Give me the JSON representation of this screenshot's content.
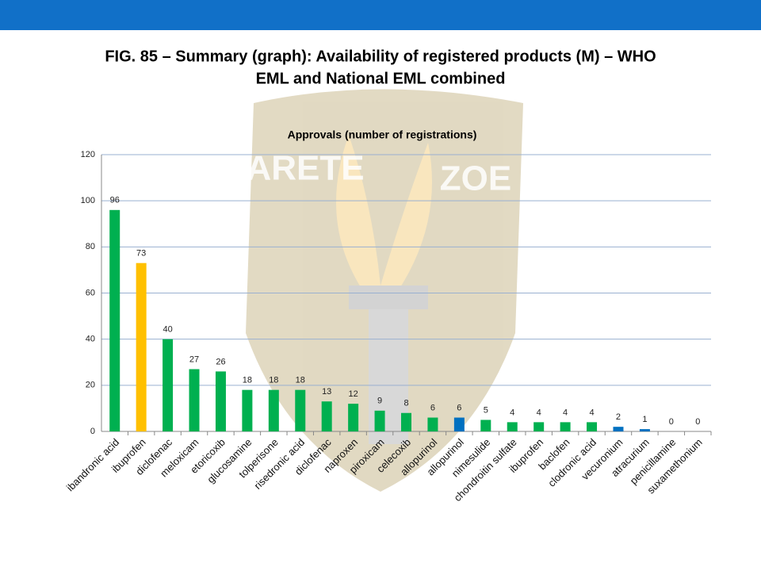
{
  "slide": {
    "title_line1": "FIG. 85 – Summary (graph): Availability of registered products (M) – WHO",
    "title_line2": "EML and National EML combined",
    "watermark": [
      "ARETE",
      "ZOE"
    ]
  },
  "chart_data": {
    "type": "bar",
    "title": "Approvals (number of registrations)",
    "categories": [
      "ibandronic acid",
      "ibuprofen",
      "diclofenac",
      "meloxicam",
      "etoricoxib",
      "glucosamine",
      "tolperisone",
      "risedronic acid",
      "diclofenac",
      "naproxen",
      "piroxicam",
      "celecoxib",
      "allopurinol",
      "allopurinol",
      "nimesulide",
      "chondroitin sulfate",
      "ibuprofen",
      "baclofen",
      "clodronic acid",
      "vecuronium",
      "atracurium",
      "penicillamine",
      "suxamethonium"
    ],
    "values": [
      96,
      73,
      40,
      27,
      26,
      18,
      18,
      18,
      13,
      12,
      9,
      8,
      6,
      6,
      5,
      4,
      4,
      4,
      4,
      2,
      1,
      0,
      0
    ],
    "colors": [
      "#00b050",
      "#ffc000",
      "#00b050",
      "#00b050",
      "#00b050",
      "#00b050",
      "#00b050",
      "#00b050",
      "#00b050",
      "#00b050",
      "#00b050",
      "#00b050",
      "#00b050",
      "#0070c0",
      "#00b050",
      "#00b050",
      "#00b050",
      "#00b050",
      "#00b050",
      "#0070c0",
      "#0070c0",
      "#00b050",
      "#00b050"
    ],
    "ylim": [
      0,
      120
    ],
    "yticks": [
      0,
      20,
      40,
      60,
      80,
      100,
      120
    ],
    "grid": true,
    "data_labels": true
  }
}
